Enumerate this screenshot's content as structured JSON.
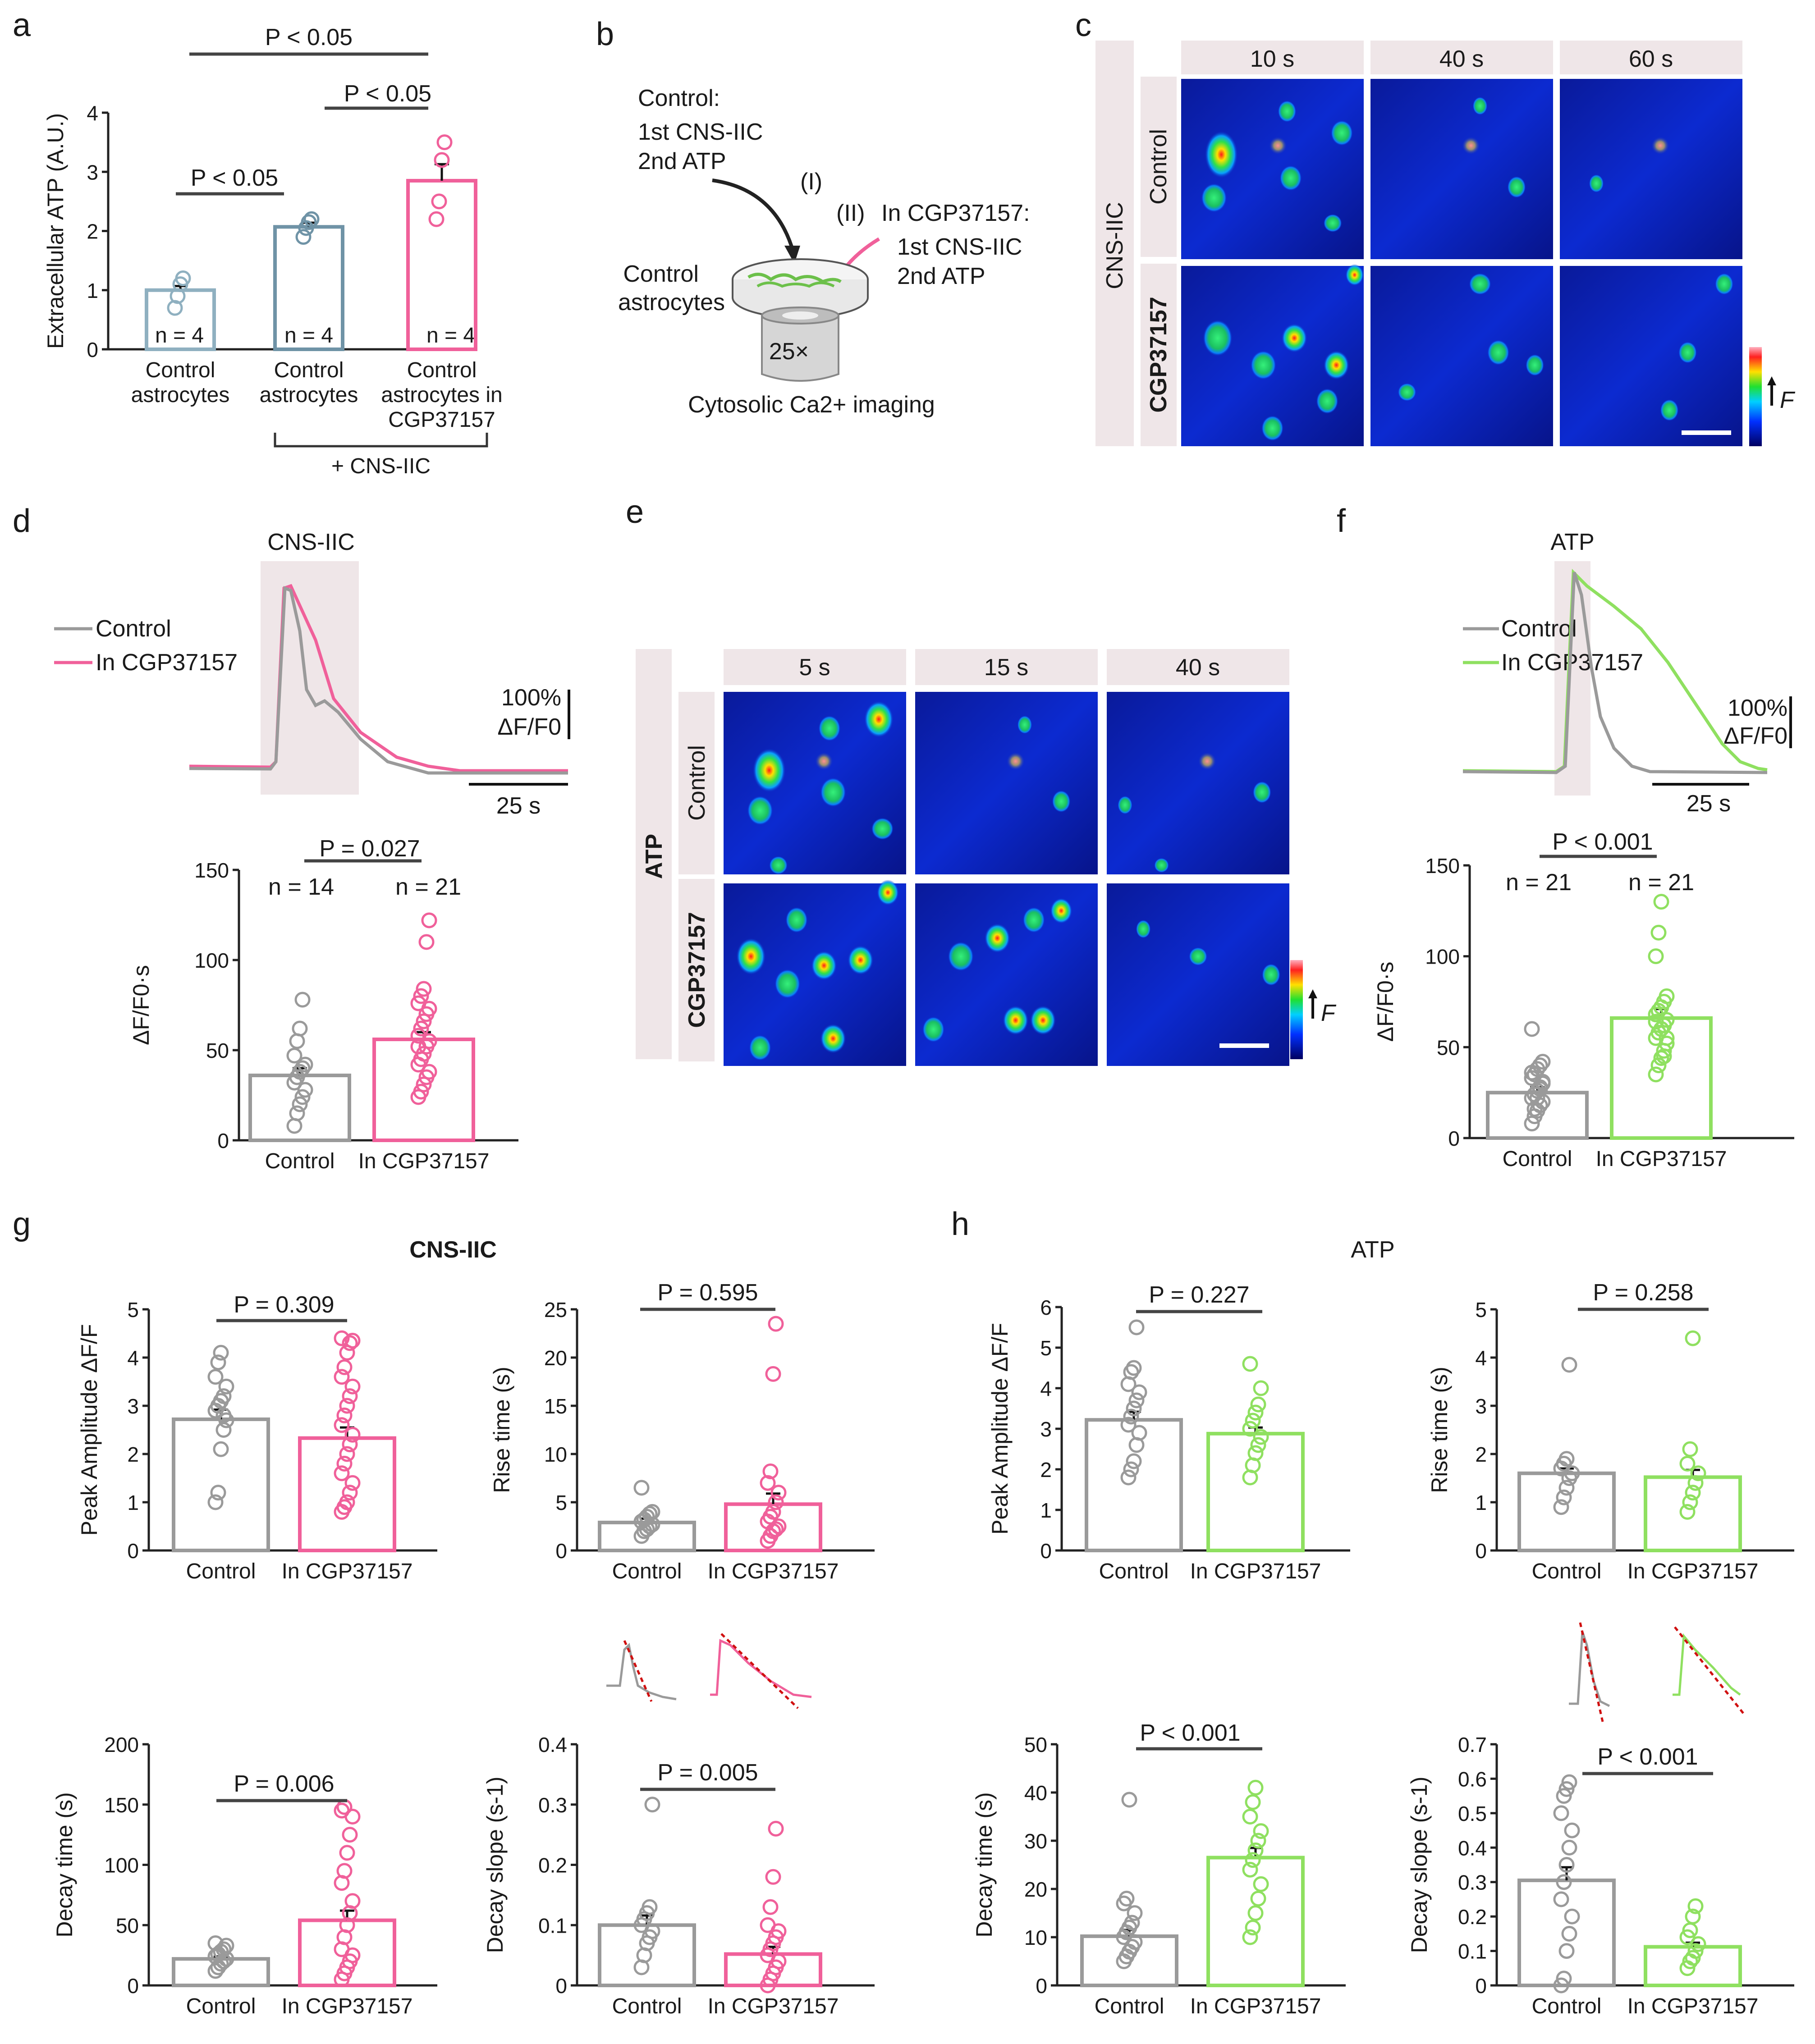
{
  "colors": {
    "control_a": "#8fb0c0",
    "control_b": "#6f93a6",
    "pink": "#f0609a",
    "grey": "#9a9a9a",
    "green": "#8fe060",
    "pale": "#efe6e8"
  },
  "panels": {
    "a": {
      "letter": "a",
      "p_top": "P < 0.05",
      "p_mid": "P < 0.05",
      "p_left": "P < 0.05",
      "n_labels": [
        "n = 4",
        "n = 4",
        "n = 4"
      ],
      "bracket_label": "+ CNS-IIC"
    },
    "b": {
      "letter": "b",
      "control_title": "Control:",
      "control_step1": "1st CNS-IIC",
      "control_step2": "2nd ATP",
      "step_I": "(I)",
      "step_II": "(II)",
      "cgp_title": "In CGP37157:",
      "cgp_step1": "1st CNS-IIC",
      "cgp_step2": "2nd ATP",
      "astro_label_1": "Control",
      "astro_label_2": "astrocytes",
      "objective": "25×",
      "imaging_label": "Cytosolic Ca2+ imaging"
    },
    "c": {
      "letter": "c",
      "side_label": "CNS-IIC",
      "row_labels": [
        "Control",
        "CGP37157"
      ],
      "times": [
        "10 s",
        "40 s",
        "60 s"
      ],
      "scale_label": "F"
    },
    "d": {
      "letter": "d",
      "trace_title": "CNS-IIC",
      "legend": [
        "Control",
        "In CGP37157"
      ],
      "scale_y_1": "100%",
      "scale_y_2": "ΔF/F0",
      "scale_x": "25 s",
      "p_label": "P = 0.027",
      "n_labels": [
        "n = 14",
        "n = 21"
      ]
    },
    "e": {
      "letter": "e",
      "side_label": "ATP",
      "row_labels": [
        "Control",
        "CGP37157"
      ],
      "times": [
        "5 s",
        "15 s",
        "40 s"
      ],
      "scale_label": "F"
    },
    "f": {
      "letter": "f",
      "trace_title": "ATP",
      "legend": [
        "Control",
        "In CGP37157"
      ],
      "scale_y_1": "100%",
      "scale_y_2": "ΔF/F0",
      "scale_x": "25 s",
      "p_label": "P < 0.001",
      "n_labels": [
        "n = 21",
        "n = 21"
      ]
    },
    "g": {
      "letter": "g",
      "title": "CNS-IIC"
    },
    "h": {
      "letter": "h",
      "title": "ATP"
    }
  },
  "chart_data": [
    {
      "id": "a",
      "type": "bar",
      "ylabel": "Extracellular ATP (A.U.)",
      "ylim": [
        0,
        4
      ],
      "yticks": [
        0,
        1,
        2,
        3,
        4
      ],
      "categories": [
        "Control astrocytes",
        "Control astrocytes",
        "Control astrocytes in CGP37157"
      ],
      "cat_lines": [
        [
          "Control",
          "astrocytes"
        ],
        [
          "Control",
          "astrocytes"
        ],
        [
          "Control",
          "astrocytes in",
          "CGP37157"
        ]
      ],
      "values": [
        1.0,
        2.07,
        2.85
      ],
      "errors": [
        0.07,
        0.07,
        0.28
      ],
      "points": [
        [
          0.7,
          0.9,
          1.1,
          1.2
        ],
        [
          1.9,
          2.05,
          2.15,
          2.2
        ],
        [
          2.2,
          2.5,
          3.2,
          3.5
        ]
      ]
    },
    {
      "id": "d",
      "type": "bar",
      "ylabel": "ΔF/F0·s",
      "ylim": [
        0,
        150
      ],
      "yticks": [
        0,
        50,
        100,
        150
      ],
      "categories": [
        "Control",
        "In CGP37157"
      ],
      "values": [
        36,
        56
      ],
      "errors": [
        4,
        4
      ],
      "points": [
        [
          8,
          15,
          20,
          24,
          28,
          32,
          35,
          38,
          40,
          42,
          47,
          55,
          62,
          78
        ],
        [
          24,
          27,
          31,
          35,
          38,
          42,
          45,
          48,
          52,
          55,
          58,
          62,
          66,
          70,
          73,
          76,
          80,
          84,
          110,
          122,
          52
        ]
      ]
    },
    {
      "id": "f",
      "type": "bar",
      "ylabel": "ΔF/F0·s",
      "ylim": [
        0,
        150
      ],
      "yticks": [
        0,
        50,
        100,
        150
      ],
      "categories": [
        "Control",
        "In CGP37157"
      ],
      "values": [
        25,
        66
      ],
      "errors": [
        3,
        5
      ],
      "points": [
        [
          8,
          12,
          15,
          18,
          20,
          22,
          24,
          26,
          28,
          30,
          33,
          35,
          38,
          40,
          42,
          60,
          16,
          22,
          27,
          31,
          36
        ],
        [
          35,
          40,
          44,
          48,
          52,
          55,
          58,
          60,
          62,
          65,
          68,
          70,
          72,
          75,
          78,
          100,
          113,
          130,
          45,
          55,
          64
        ]
      ]
    },
    {
      "id": "g1",
      "type": "bar",
      "ylabel": "Peak Amplitude ΔF/F",
      "ylim": [
        0,
        5
      ],
      "yticks": [
        0,
        1,
        2,
        3,
        4,
        5
      ],
      "categories": [
        "Control",
        "In CGP37157"
      ],
      "values": [
        2.72,
        2.33
      ],
      "errors": [
        0.2,
        0.22
      ],
      "points": [
        [
          1.0,
          1.2,
          2.1,
          2.5,
          2.7,
          2.9,
          3.0,
          3.1,
          3.2,
          3.4,
          3.6,
          3.9,
          4.1,
          2.8
        ],
        [
          0.8,
          0.9,
          1.0,
          1.2,
          1.4,
          1.6,
          1.8,
          2.0,
          2.2,
          2.4,
          2.6,
          2.8,
          3.0,
          3.2,
          3.4,
          3.6,
          3.8,
          4.1,
          4.3,
          4.35,
          4.4
        ]
      ]
    },
    {
      "id": "g2",
      "type": "bar",
      "ylabel": "Rise time (s)",
      "ylim": [
        0,
        25
      ],
      "yticks": [
        0,
        5,
        10,
        15,
        20,
        25
      ],
      "categories": [
        "Control",
        "In CGP37157"
      ],
      "values": [
        2.9,
        4.8
      ],
      "errors": [
        0.4,
        1.1
      ],
      "points": [
        [
          1.5,
          2.0,
          2.2,
          2.5,
          2.7,
          3.0,
          3.2,
          3.5,
          3.8,
          4.0,
          6.5
        ],
        [
          1.0,
          1.5,
          2.0,
          2.2,
          2.5,
          3.0,
          3.5,
          4.0,
          5.0,
          6.0,
          7.0,
          8.2,
          18.3,
          23.5
        ]
      ]
    },
    {
      "id": "g3",
      "type": "bar",
      "ylabel": "Decay time (s)",
      "ylim": [
        0,
        200
      ],
      "yticks": [
        0,
        50,
        100,
        150,
        200
      ],
      "categories": [
        "Control",
        "In CGP37157"
      ],
      "values": [
        22,
        54
      ],
      "errors": [
        2,
        8
      ],
      "points": [
        [
          12,
          15,
          18,
          20,
          22,
          24,
          26,
          28,
          30,
          33,
          35
        ],
        [
          5,
          10,
          15,
          20,
          25,
          30,
          40,
          50,
          60,
          70,
          85,
          95,
          110,
          125,
          140,
          145,
          148
        ]
      ]
    },
    {
      "id": "g4",
      "type": "bar",
      "ylabel": "Decay slope (s-1)",
      "ylim": [
        0,
        0.4
      ],
      "yticks": [
        0,
        0.1,
        0.2,
        0.3,
        0.4
      ],
      "categories": [
        "Control",
        "In CGP37157"
      ],
      "values": [
        0.1,
        0.052
      ],
      "errors": [
        0.016,
        0.012
      ],
      "points": [
        [
          0.03,
          0.05,
          0.07,
          0.08,
          0.09,
          0.1,
          0.11,
          0.12,
          0.13,
          0.3
        ],
        [
          0.0,
          0.01,
          0.02,
          0.03,
          0.04,
          0.05,
          0.06,
          0.07,
          0.08,
          0.09,
          0.1,
          0.13,
          0.18,
          0.26
        ]
      ]
    },
    {
      "id": "h1",
      "type": "bar",
      "ylabel": "Peak Amplitude ΔF/F",
      "ylim": [
        0,
        6
      ],
      "yticks": [
        0,
        1,
        2,
        3,
        4,
        5,
        6
      ],
      "categories": [
        "Control",
        "In CGP37157"
      ],
      "values": [
        3.22,
        2.88
      ],
      "errors": [
        0.2,
        0.15
      ],
      "points": [
        [
          1.8,
          2.0,
          2.2,
          2.6,
          2.9,
          3.1,
          3.3,
          3.5,
          3.7,
          3.9,
          4.1,
          4.4,
          4.5,
          5.5
        ],
        [
          1.8,
          2.1,
          2.4,
          2.6,
          2.8,
          3.0,
          3.2,
          3.4,
          3.6,
          4.0,
          4.6
        ]
      ]
    },
    {
      "id": "h2",
      "type": "bar",
      "ylabel": "Rise time (s)",
      "ylim": [
        0,
        5
      ],
      "yticks": [
        0,
        1,
        2,
        3,
        4,
        5
      ],
      "categories": [
        "Control",
        "In CGP37157"
      ],
      "values": [
        1.6,
        1.52
      ],
      "errors": [
        0.1,
        0.15
      ],
      "points": [
        [
          0.9,
          1.1,
          1.3,
          1.5,
          1.6,
          1.7,
          1.8,
          1.9,
          3.85
        ],
        [
          0.8,
          1.0,
          1.2,
          1.4,
          1.6,
          1.8,
          2.1,
          4.4
        ]
      ]
    },
    {
      "id": "h3",
      "type": "bar",
      "ylabel": "Decay time (s)",
      "ylim": [
        0,
        50
      ],
      "yticks": [
        0,
        10,
        20,
        30,
        40,
        50
      ],
      "categories": [
        "Control",
        "In CGP37157"
      ],
      "values": [
        10.2,
        26.5
      ],
      "errors": [
        1.3,
        2
      ],
      "points": [
        [
          5,
          6,
          7,
          8,
          9,
          10,
          11,
          12,
          13,
          15,
          17,
          18,
          38.5
        ],
        [
          10,
          12,
          15,
          18,
          21,
          24,
          26,
          28,
          30,
          32,
          35,
          38,
          41
        ]
      ]
    },
    {
      "id": "h4",
      "type": "bar",
      "ylabel": "Decay slope (s-1)",
      "ylim": [
        0,
        0.7
      ],
      "yticks": [
        0,
        0.1,
        0.2,
        0.3,
        0.4,
        0.5,
        0.6,
        0.7
      ],
      "categories": [
        "Control",
        "In CGP37157"
      ],
      "values": [
        0.305,
        0.112
      ],
      "errors": [
        0.038,
        0.012
      ],
      "points": [
        [
          0.0,
          0.02,
          0.1,
          0.15,
          0.2,
          0.25,
          0.3,
          0.35,
          0.4,
          0.45,
          0.5,
          0.55,
          0.57,
          0.59
        ],
        [
          0.05,
          0.07,
          0.08,
          0.1,
          0.12,
          0.14,
          0.16,
          0.2,
          0.23
        ]
      ]
    }
  ]
}
